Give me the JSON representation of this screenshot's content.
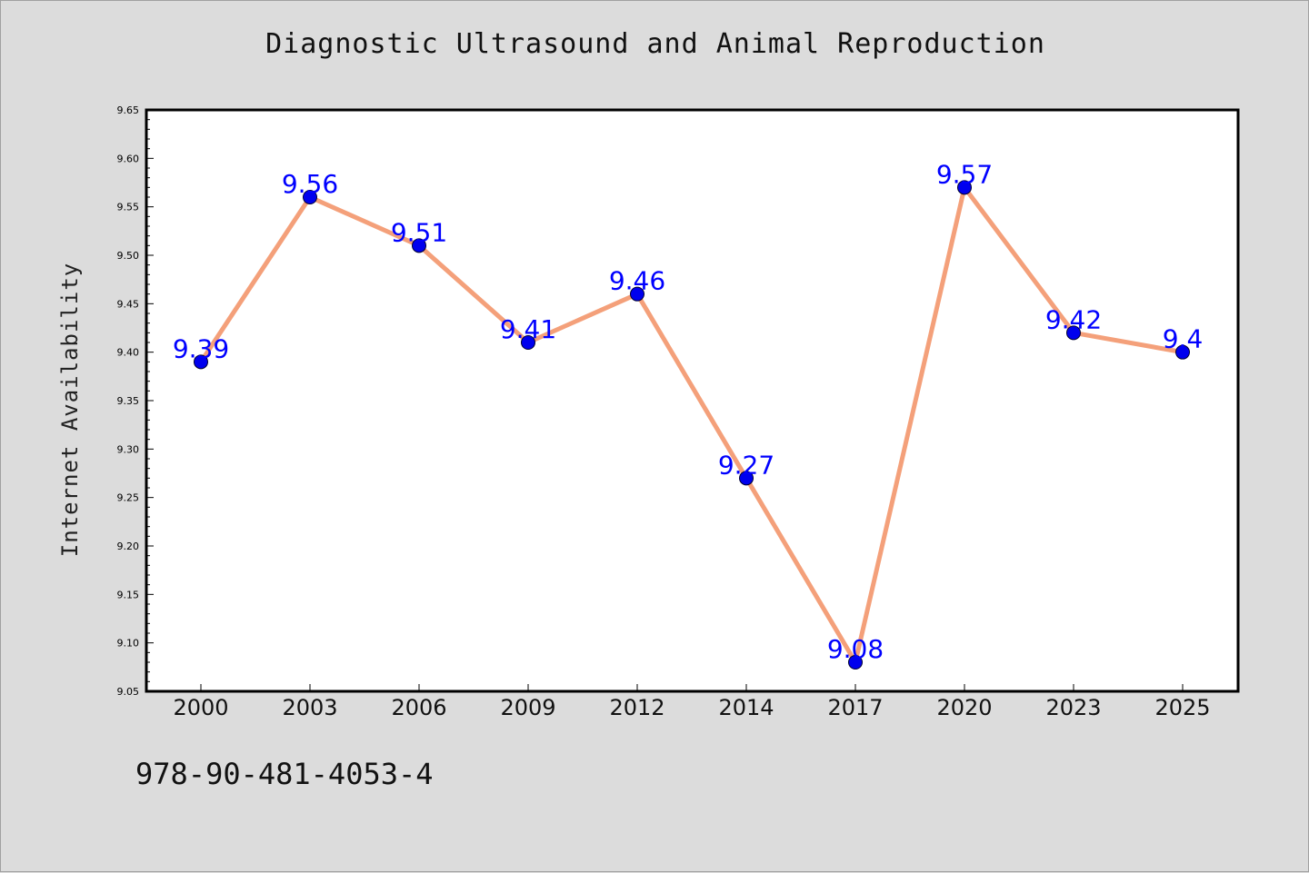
{
  "chart_data": {
    "type": "line",
    "title": "Diagnostic Ultrasound and Animal Reproduction",
    "xlabel": "",
    "ylabel": "Internet Availability",
    "categories": [
      "2000",
      "2003",
      "2006",
      "2009",
      "2012",
      "2014",
      "2017",
      "2020",
      "2023",
      "2025"
    ],
    "series": [
      {
        "values": [
          9.39,
          9.56,
          9.51,
          9.41,
          9.46,
          9.27,
          9.08,
          9.57,
          9.42,
          9.4
        ],
        "data_labels": [
          "9.39",
          "9.56",
          "9.51",
          "9.41",
          "9.46",
          "9.27",
          "9.08",
          "9.57",
          "9.42",
          "9.4"
        ],
        "line_color": "#f4a07a",
        "marker_color": "#0000ee"
      }
    ],
    "ylim": [
      9.05,
      9.65
    ],
    "yticks": [
      "9.05",
      "9.10",
      "9.15",
      "9.20",
      "9.25",
      "9.30",
      "9.35",
      "9.40",
      "9.45",
      "9.50",
      "9.55",
      "9.60",
      "9.65"
    ],
    "grid": false,
    "label_color": "#0000ff"
  },
  "footer": {
    "isbn": "978-90-481-4053-4"
  }
}
